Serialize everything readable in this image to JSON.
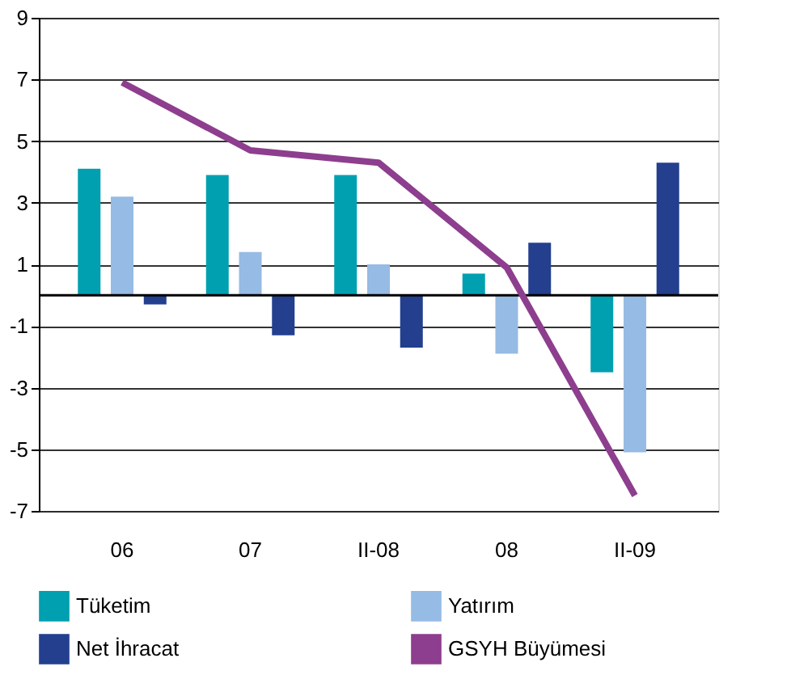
{
  "chart_data": {
    "type": "bar",
    "categories": [
      "06",
      "07",
      "II-08",
      "08",
      "II-09"
    ],
    "series": [
      {
        "name": "Tüketim",
        "color": "#00a0b0",
        "values": [
          4.1,
          3.9,
          3.9,
          0.7,
          -2.5
        ]
      },
      {
        "name": "Yatırım",
        "color": "#96bbe4",
        "values": [
          3.2,
          1.4,
          1.0,
          -1.9,
          -5.1
        ]
      },
      {
        "name": "Net İhracat",
        "color": "#233f8e",
        "values": [
          -0.3,
          -1.3,
          -1.7,
          1.7,
          4.3
        ]
      },
      {
        "name": "GSYH Büyümesi",
        "color": "#8e3e8e",
        "type": "line",
        "values": [
          6.9,
          4.7,
          4.3,
          0.9,
          -6.5
        ]
      }
    ],
    "ylim": [
      -7,
      9
    ],
    "yticks": [
      -7,
      -5,
      -3,
      -1,
      1,
      3,
      5,
      7,
      9
    ],
    "grid": "y",
    "legend": "bottom"
  }
}
